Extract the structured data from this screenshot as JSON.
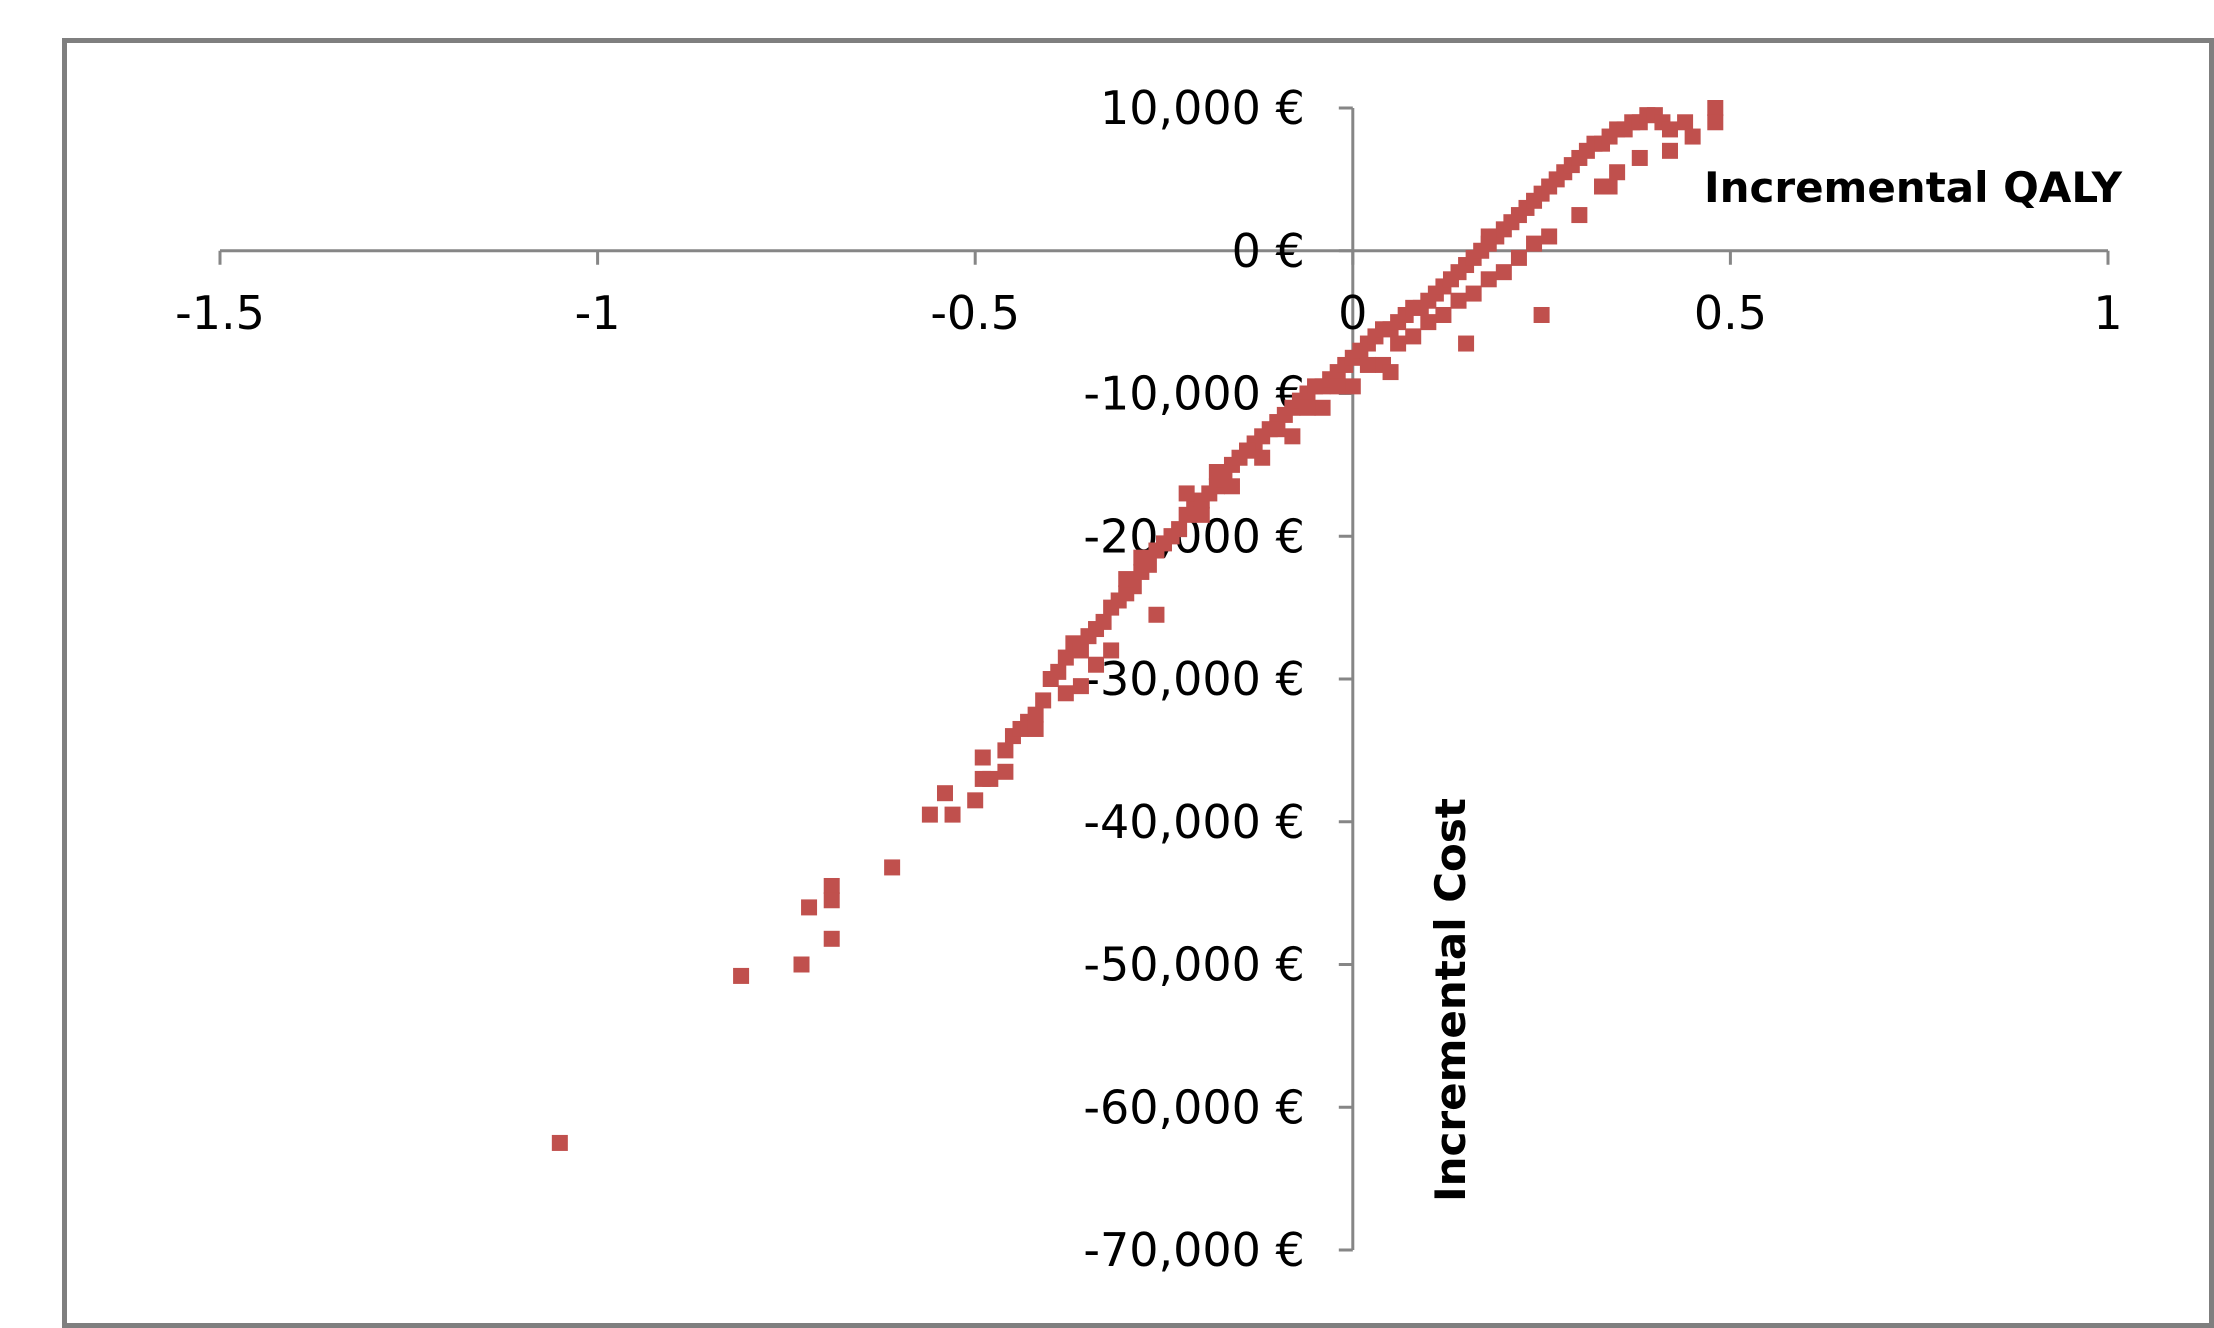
{
  "chart_data": {
    "type": "scatter",
    "title": "",
    "xlabel": "Incremental QALY",
    "ylabel": "Incremental Cost",
    "xlim": [
      -1.5,
      1
    ],
    "ylim": [
      -70000,
      10000
    ],
    "x_ticks": [
      "-1.5",
      "-1",
      "-0.5",
      "0",
      "0.5",
      "1"
    ],
    "y_ticks": [
      "10,000 €",
      "0 €",
      "-10,000 €",
      "-20,000 €",
      "-30,000 €",
      "-40,000 €",
      "-50,000 €",
      "-60,000 €",
      "-70,000 €"
    ],
    "grid": false,
    "legend": "none",
    "marker_color": "#C0504D",
    "axis_color": "#868686",
    "series": [
      {
        "x": [
          -1.05,
          -0.81,
          -0.73,
          -0.72,
          -0.69,
          -0.69,
          -0.69,
          -0.61,
          -0.56,
          -0.54,
          -0.53,
          -0.5,
          -0.49,
          -0.49,
          -0.48,
          -0.46,
          -0.46,
          -0.45,
          -0.44,
          -0.43,
          -0.42,
          -0.41,
          -0.4,
          -0.39,
          -0.38,
          -0.37,
          -0.36,
          -0.35,
          -0.34,
          -0.33,
          -0.32,
          -0.31,
          -0.3,
          -0.29,
          -0.28,
          -0.27,
          -0.26,
          -0.25,
          -0.24,
          -0.23,
          -0.22,
          -0.21,
          -0.2,
          -0.19,
          -0.18,
          -0.17,
          -0.16,
          -0.15,
          -0.14,
          -0.13,
          -0.12,
          -0.11,
          -0.1,
          -0.09,
          -0.08,
          -0.07,
          -0.06,
          -0.05,
          -0.04,
          -0.03,
          -0.02,
          -0.01,
          0.0,
          0.01,
          0.02,
          0.03,
          0.04,
          0.05,
          0.06,
          0.07,
          0.08,
          0.09,
          0.1,
          0.11,
          0.12,
          0.13,
          0.14,
          0.15,
          0.16,
          0.17,
          0.18,
          0.19,
          0.2,
          0.21,
          0.22,
          0.23,
          0.24,
          0.25,
          0.26,
          0.27,
          0.28,
          0.29,
          0.3,
          0.31,
          0.32,
          0.33,
          0.34,
          0.35,
          0.36,
          0.37,
          0.38,
          0.39,
          0.4,
          0.41,
          0.42,
          0.44,
          0.45,
          0.48,
          0.48,
          -0.3,
          -0.28,
          -0.24,
          -0.2,
          -0.16,
          -0.12,
          -0.08,
          -0.04,
          0.0,
          0.04,
          0.08,
          0.12,
          0.16,
          0.2,
          0.24,
          -0.22,
          -0.18,
          -0.14,
          -0.1,
          -0.06,
          -0.02,
          0.02,
          0.06,
          0.1,
          0.14,
          0.18,
          0.22,
          0.26,
          0.3,
          0.34,
          -0.38,
          -0.34,
          -0.26,
          0.18,
          0.33,
          0.35,
          0.38,
          0.42,
          0.05,
          0.15,
          0.25,
          -0.42,
          -0.36,
          -0.32
        ],
        "y": [
          -62500,
          -50800,
          -50000,
          -46000,
          -44500,
          -45500,
          -48200,
          -43200,
          -39500,
          -38000,
          -39500,
          -38500,
          -37000,
          -35500,
          -37000,
          -35000,
          -36500,
          -34000,
          -33500,
          -33000,
          -32500,
          -31500,
          -30000,
          -29500,
          -28500,
          -27500,
          -28000,
          -27000,
          -26500,
          -26000,
          -25000,
          -24500,
          -24000,
          -23500,
          -22500,
          -22000,
          -21000,
          -20500,
          -20000,
          -19500,
          -18500,
          -18000,
          -17500,
          -17000,
          -16500,
          -16000,
          -15000,
          -14500,
          -14000,
          -13500,
          -13000,
          -12500,
          -12000,
          -11500,
          -11000,
          -10500,
          -10000,
          -9500,
          -9500,
          -9000,
          -8500,
          -8000,
          -7500,
          -7000,
          -6500,
          -6000,
          -5500,
          -5500,
          -5000,
          -4500,
          -4000,
          -4000,
          -3500,
          -3000,
          -2500,
          -2000,
          -1500,
          -1000,
          -500,
          0,
          500,
          1000,
          1500,
          2000,
          2500,
          3000,
          3500,
          4000,
          4500,
          5000,
          5500,
          6000,
          6500,
          7000,
          7500,
          7500,
          8000,
          8500,
          8500,
          9000,
          9000,
          9500,
          9500,
          9000,
          8500,
          9000,
          8000,
          10000,
          9000,
          -23000,
          -21500,
          -20000,
          -18500,
          -16500,
          -14500,
          -13000,
          -11000,
          -9500,
          -8000,
          -6000,
          -4500,
          -3000,
          -1500,
          500,
          -17000,
          -15500,
          -14000,
          -12500,
          -11000,
          -9500,
          -8000,
          -6500,
          -5000,
          -3500,
          -2000,
          -500,
          1000,
          2500,
          4500,
          -31000,
          -29000,
          -25500,
          1000,
          4500,
          5500,
          6500,
          7000,
          -8500,
          -6500,
          -4500,
          -33500,
          -30500,
          -28000
        ]
      }
    ]
  }
}
